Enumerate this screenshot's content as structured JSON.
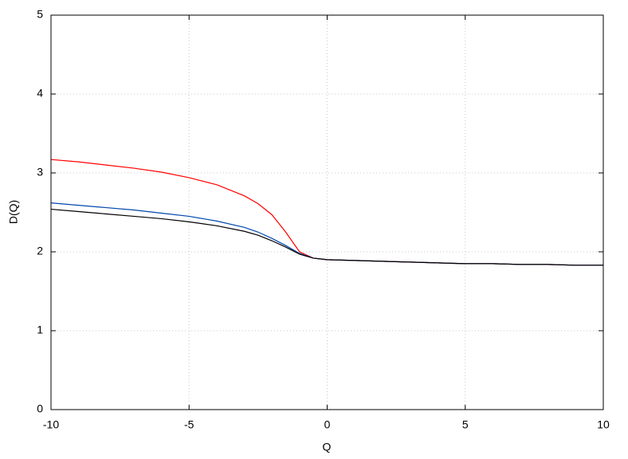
{
  "chart_data": {
    "type": "line",
    "xlabel": "Q",
    "ylabel": "D(Q)",
    "x": [
      -10,
      -9,
      -8,
      -7,
      -6,
      -5,
      -4,
      -3,
      -2.5,
      -2,
      -1.5,
      -1,
      -0.5,
      0,
      1,
      2,
      3,
      4,
      5,
      6,
      7,
      8,
      9,
      10
    ],
    "series": [
      {
        "color": "#ff0000",
        "values": [
          3.17,
          3.14,
          3.1,
          3.06,
          3.01,
          2.94,
          2.85,
          2.71,
          2.61,
          2.47,
          2.25,
          2.0,
          1.92,
          1.9,
          1.89,
          1.88,
          1.87,
          1.86,
          1.85,
          1.85,
          1.84,
          1.84,
          1.83,
          1.83
        ]
      },
      {
        "color": "#0047ab",
        "values": [
          2.62,
          2.59,
          2.56,
          2.53,
          2.49,
          2.45,
          2.39,
          2.31,
          2.25,
          2.17,
          2.08,
          1.98,
          1.92,
          1.9,
          1.89,
          1.88,
          1.87,
          1.86,
          1.85,
          1.85,
          1.84,
          1.84,
          1.83,
          1.83
        ]
      },
      {
        "color": "#000000",
        "values": [
          2.54,
          2.51,
          2.48,
          2.45,
          2.42,
          2.38,
          2.33,
          2.26,
          2.21,
          2.14,
          2.06,
          1.97,
          1.92,
          1.9,
          1.89,
          1.88,
          1.87,
          1.86,
          1.85,
          1.85,
          1.84,
          1.84,
          1.83,
          1.83
        ]
      }
    ],
    "xlim": [
      -10,
      10
    ],
    "xticks": [
      -10,
      -5,
      0,
      5,
      10
    ],
    "ylim": [
      0,
      5
    ],
    "yticks": [
      0,
      1,
      2,
      3,
      4,
      5
    ],
    "grid": true
  }
}
